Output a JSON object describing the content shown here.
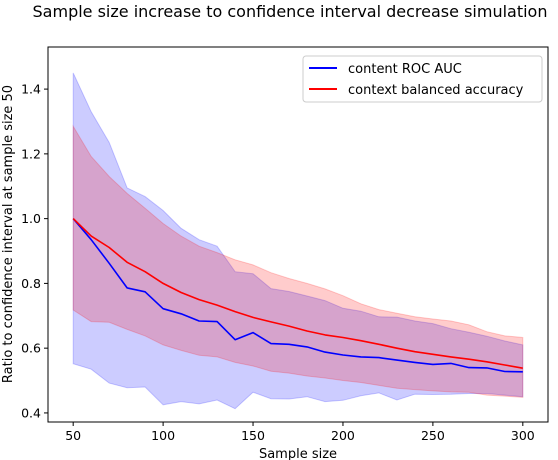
{
  "chart_data": {
    "type": "line",
    "title": "Sample size increase to confidence interval decrease simulation",
    "xlabel": "Sample size",
    "ylabel": "Ratio to confidence interval at sample size 50",
    "xlim": [
      36,
      314
    ],
    "ylim": [
      0.372,
      1.53
    ],
    "xticks": [
      50,
      100,
      150,
      200,
      250,
      300
    ],
    "yticks": [
      0.4,
      0.6,
      0.8,
      1.0,
      1.2,
      1.4
    ],
    "ytick_labels": [
      "0.4",
      "0.6",
      "0.8",
      "1.0",
      "1.2",
      "1.4"
    ],
    "grid": false,
    "legend_position": "upper right",
    "x": [
      50,
      60,
      70,
      80,
      90,
      100,
      110,
      120,
      130,
      140,
      150,
      160,
      170,
      180,
      190,
      200,
      210,
      220,
      230,
      240,
      250,
      260,
      270,
      280,
      290,
      300
    ],
    "series": [
      {
        "name": "content ROC AUC",
        "color": "#0000ff",
        "band_color": "#0000ff",
        "values": [
          1.0,
          0.935,
          0.862,
          0.786,
          0.774,
          0.722,
          0.706,
          0.684,
          0.682,
          0.626,
          0.648,
          0.614,
          0.612,
          0.604,
          0.588,
          0.579,
          0.573,
          0.571,
          0.563,
          0.556,
          0.55,
          0.553,
          0.54,
          0.539,
          0.528,
          0.527
        ],
        "lower": [
          0.552,
          0.535,
          0.492,
          0.478,
          0.48,
          0.425,
          0.435,
          0.428,
          0.44,
          0.413,
          0.464,
          0.444,
          0.443,
          0.45,
          0.435,
          0.439,
          0.453,
          0.462,
          0.44,
          0.458,
          0.457,
          0.458,
          0.46,
          0.46,
          0.455,
          0.45
        ],
        "upper": [
          1.45,
          1.33,
          1.235,
          1.095,
          1.068,
          1.025,
          0.97,
          0.935,
          0.915,
          0.836,
          0.83,
          0.784,
          0.775,
          0.761,
          0.747,
          0.723,
          0.714,
          0.697,
          0.696,
          0.684,
          0.676,
          0.66,
          0.649,
          0.637,
          0.622,
          0.61
        ]
      },
      {
        "name": "context balanced accuracy",
        "color": "#ff0000",
        "band_color": "#ff0000",
        "values": [
          1.0,
          0.946,
          0.911,
          0.865,
          0.836,
          0.8,
          0.772,
          0.75,
          0.733,
          0.713,
          0.695,
          0.681,
          0.668,
          0.653,
          0.641,
          0.633,
          0.623,
          0.612,
          0.6,
          0.589,
          0.581,
          0.573,
          0.566,
          0.558,
          0.548,
          0.538
        ],
        "lower": [
          0.718,
          0.682,
          0.68,
          0.658,
          0.638,
          0.61,
          0.593,
          0.578,
          0.573,
          0.556,
          0.545,
          0.529,
          0.523,
          0.514,
          0.508,
          0.5,
          0.494,
          0.485,
          0.476,
          0.472,
          0.468,
          0.465,
          0.464,
          0.455,
          0.452,
          0.448
        ],
        "upper": [
          1.285,
          1.192,
          1.13,
          1.078,
          1.032,
          0.985,
          0.946,
          0.915,
          0.895,
          0.873,
          0.857,
          0.833,
          0.815,
          0.8,
          0.783,
          0.762,
          0.737,
          0.719,
          0.708,
          0.697,
          0.69,
          0.684,
          0.672,
          0.651,
          0.638,
          0.633
        ]
      }
    ]
  }
}
